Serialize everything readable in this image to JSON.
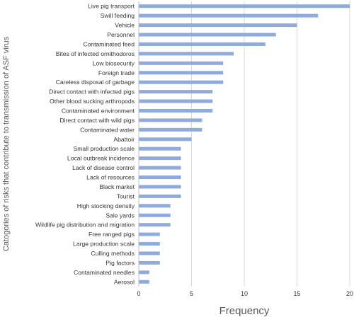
{
  "chart_data": {
    "type": "bar",
    "orientation": "horizontal",
    "xlabel": "Frequency",
    "ylabel": "Catogories of risks  that contribute to transmission of ASF virus",
    "xlim": [
      0,
      20
    ],
    "xticks": [
      "0",
      "5",
      "10",
      "15",
      "20"
    ],
    "grid": "vertical",
    "bar_color": "#8faadc",
    "categories": [
      "Live pig transport",
      "Swill feeding",
      "Vehicle",
      "Personnel",
      "Contaminated feed",
      "Bites of infected ornithodoros",
      "Low biosecurity",
      "Foreign trade",
      "Careless disposal of garbage",
      "Direct contact with infected pigs",
      "Other blood sucking arthropods",
      "Contaminated environment",
      "Direct contact with wild pigs",
      "Contaminated water",
      "Abattoir",
      "Small production scale",
      "Local outbreak incidence",
      "Lack of disease control",
      "Lack of resources",
      "Black market",
      "Tourist",
      "High stocking density",
      "Sale yards",
      "Wildlife pig distribution and migration",
      "Free ranged pigs",
      "Large production scale",
      "Culling methods",
      "Pig factors",
      "Contaminated needles",
      "Aerosol"
    ],
    "values": [
      20,
      17,
      15,
      13,
      12,
      9,
      8,
      8,
      8,
      7,
      7,
      7,
      6,
      6,
      5,
      4,
      4,
      4,
      4,
      4,
      4,
      3,
      3,
      3,
      2,
      2,
      2,
      2,
      1,
      1
    ]
  }
}
